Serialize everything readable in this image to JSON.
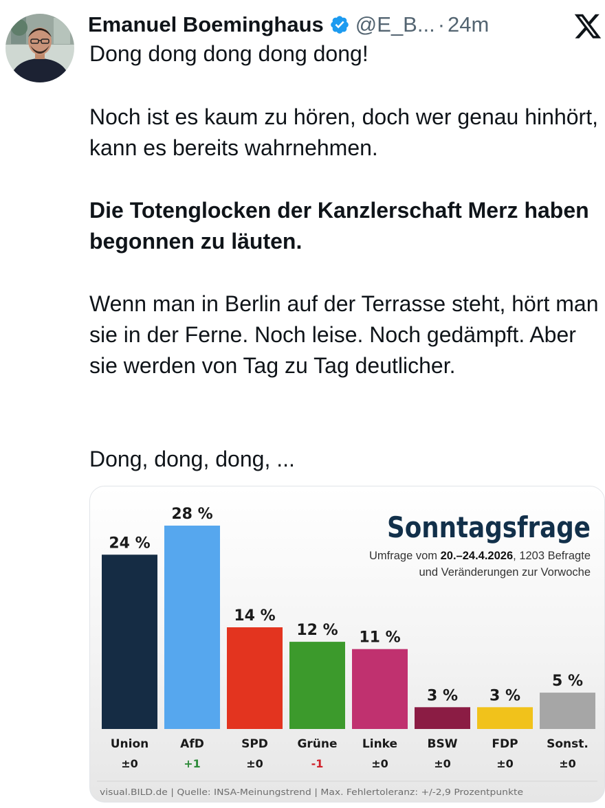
{
  "tweet": {
    "author_name": "Emanuel Boeminghaus",
    "author_handle": "@E_B...",
    "separator": "·",
    "timestamp": "24m",
    "paragraphs": {
      "p1": "Dong dong dong dong dong!",
      "p2": "Noch ist es kaum zu hören, doch wer genau hinhört, kann es bereits wahrnehmen.",
      "p3": "Die Totenglocken der Kanzlerschaft Merz haben begonnen zu läuten.",
      "p4": "Wenn man in Berlin auf der Terrasse steht, hört man sie in der Ferne. Noch leise. Noch gedämpft. Aber sie werden von Tag zu Tag deutlicher.",
      "p5": "Dong, dong, dong, ..."
    }
  },
  "colors": {
    "badge": "#1d9bf0",
    "text": "#0f1419",
    "muted": "#536471"
  },
  "icons": {
    "verified": "verified-badge-icon",
    "platform": "x-logo-icon"
  },
  "chart_data": {
    "type": "bar",
    "title": "Sonntagsfrage",
    "subtitle_prefix": "Umfrage vom ",
    "subtitle_dates": "20.–24.4.2026",
    "subtitle_suffix": ", 1203 Befragte",
    "subtitle_line2": "und Veränderungen zur Vorwoche",
    "categories": [
      "Union",
      "AfD",
      "SPD",
      "Grüne",
      "Linke",
      "BSW",
      "FDP",
      "Sonst."
    ],
    "values": [
      24,
      28,
      14,
      12,
      11,
      3,
      3,
      5
    ],
    "value_labels": [
      "24 %",
      "28 %",
      "14 %",
      "12 %",
      "11 %",
      "3 %",
      "3 %",
      "5 %"
    ],
    "changes": [
      "±0",
      "+1",
      "±0",
      "-1",
      "±0",
      "±0",
      "±0",
      "±0"
    ],
    "bar_colors": [
      "#152c44",
      "#56a7ee",
      "#e3341f",
      "#3c9a2c",
      "#c0316f",
      "#8b1c44",
      "#f1c21b",
      "#a6a6a6"
    ],
    "change_colors": [
      "#1a1a1a",
      "#2e8b3a",
      "#1a1a1a",
      "#d0202a",
      "#1a1a1a",
      "#1a1a1a",
      "#1a1a1a",
      "#1a1a1a"
    ],
    "ylim": [
      0,
      28
    ],
    "footer": "visual.BILD.de | Quelle: INSA-Meinungstrend | Max. Fehlertoleranz: +/-2,9 Prozentpunkte"
  }
}
